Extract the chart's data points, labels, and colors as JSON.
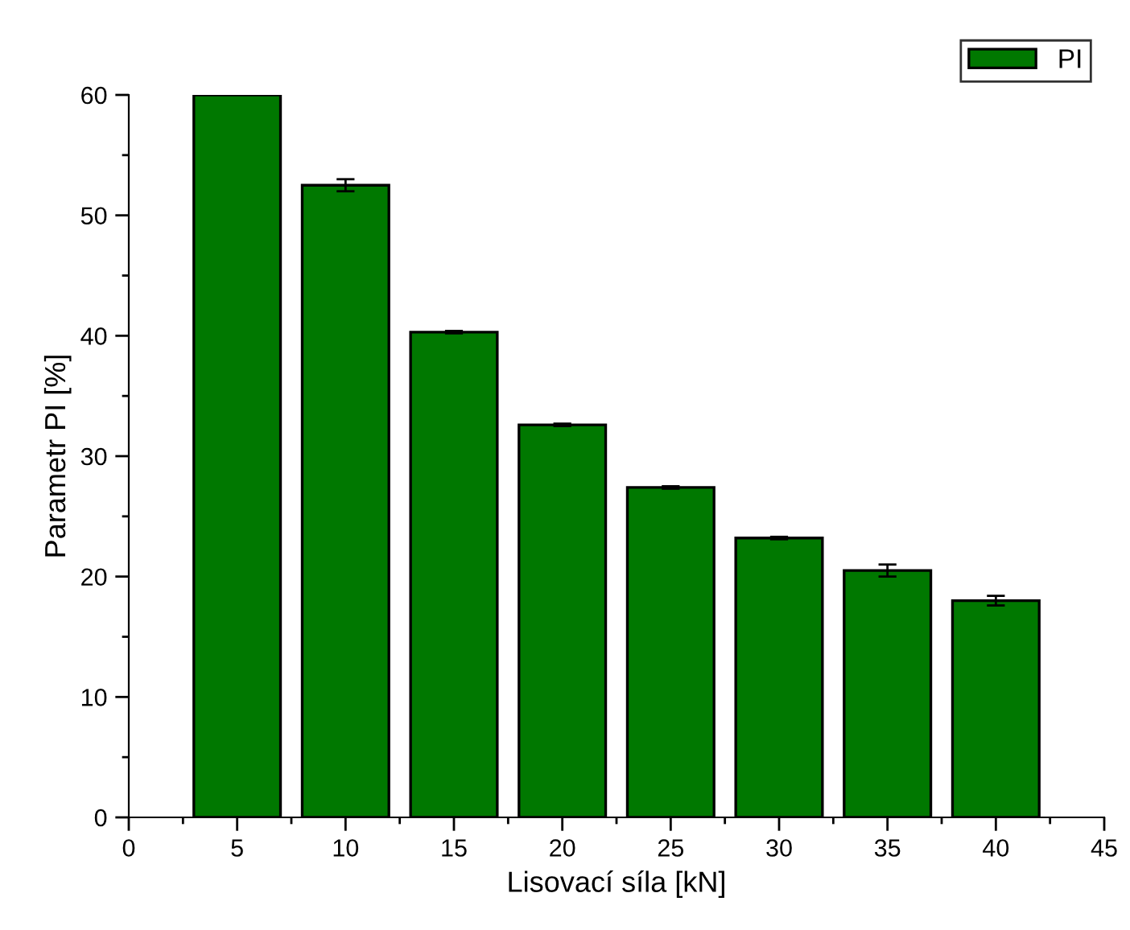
{
  "chart_data": {
    "type": "bar",
    "xlabel": "Lisovací síla [kN]",
    "ylabel": "Parametr PI [%]",
    "x": [
      5,
      10,
      15,
      20,
      25,
      30,
      35,
      40
    ],
    "series": [
      {
        "name": "PI",
        "color": "#007800",
        "values": [
          60,
          52.5,
          40.3,
          32.6,
          27.4,
          23.2,
          20.5,
          18.0
        ],
        "errors": [
          null,
          0.5,
          0.1,
          0.1,
          0.1,
          0.1,
          0.5,
          0.4
        ]
      }
    ],
    "xlim": [
      0,
      45
    ],
    "xticks": [
      0,
      5,
      10,
      15,
      20,
      25,
      30,
      35,
      40,
      45
    ],
    "ylim": [
      0,
      60
    ],
    "yticks": [
      0,
      10,
      20,
      30,
      40,
      50,
      60
    ],
    "grid": false,
    "legend": "top right"
  }
}
